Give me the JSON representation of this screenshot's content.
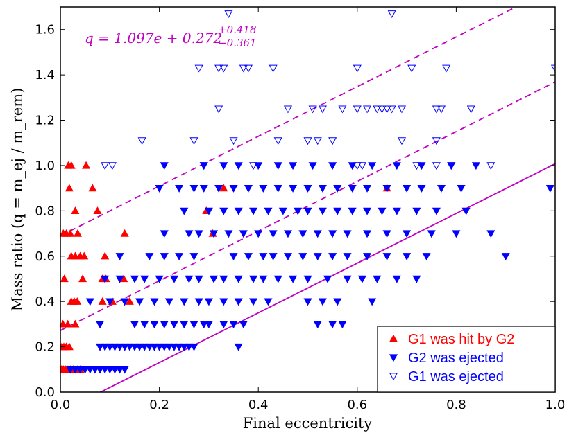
{
  "chart_data": {
    "type": "scatter",
    "xlabel": "Final eccentricity",
    "ylabel": "Mass ratio (q = m_ej / m_rem)",
    "xlim": [
      0.0,
      1.0
    ],
    "ylim": [
      0.0,
      1.7
    ],
    "xticks": [
      "0.0",
      "0.2",
      "0.4",
      "0.6",
      "0.8",
      "1.0"
    ],
    "yticks": [
      "0.0",
      "0.2",
      "0.4",
      "0.6",
      "0.8",
      "1.0",
      "1.2",
      "1.4",
      "1.6"
    ],
    "xtick_values": [
      0.0,
      0.2,
      0.4,
      0.6,
      0.8,
      1.0
    ],
    "ytick_values": [
      0.0,
      0.2,
      0.4,
      0.6,
      0.8,
      1.0,
      1.2,
      1.4,
      1.6
    ],
    "annotation": {
      "main": "q = 1.097e + 0.272",
      "sup": "+0.418",
      "sub": "−0.361"
    },
    "fit": {
      "slope": 1.097,
      "intercept": 0.272,
      "upper_offset": 0.418,
      "lower_offset": 0.361,
      "color": "#c000c0"
    },
    "legend": {
      "placement": "bottom-right",
      "entries": [
        {
          "label": "G1 was hit by G2",
          "color": "#ff0000",
          "marker": "triangle-up-filled"
        },
        {
          "label": "G2 was ejected",
          "color": "#0000ff",
          "marker": "triangle-down-filled"
        },
        {
          "label": "G1 was ejected",
          "color": "#0000ff",
          "marker": "triangle-down-open"
        }
      ]
    },
    "series": [
      {
        "name": "G1 was hit by G2",
        "color": "#ff0000",
        "marker": "triangle-up-filled",
        "points": [
          [
            0.002,
            0.1
          ],
          [
            0.006,
            0.1
          ],
          [
            0.01,
            0.1
          ],
          [
            0.014,
            0.1
          ],
          [
            0.02,
            0.1
          ],
          [
            0.026,
            0.1
          ],
          [
            0.035,
            0.1
          ],
          [
            0.04,
            0.1
          ],
          [
            0.003,
            0.2
          ],
          [
            0.007,
            0.2
          ],
          [
            0.012,
            0.2
          ],
          [
            0.018,
            0.2
          ],
          [
            0.005,
            0.3
          ],
          [
            0.015,
            0.3
          ],
          [
            0.03,
            0.3
          ],
          [
            0.022,
            0.4
          ],
          [
            0.028,
            0.4
          ],
          [
            0.034,
            0.4
          ],
          [
            0.008,
            0.5
          ],
          [
            0.045,
            0.5
          ],
          [
            0.085,
            0.5
          ],
          [
            0.092,
            0.5
          ],
          [
            0.128,
            0.5
          ],
          [
            0.04,
            0.6
          ],
          [
            0.048,
            0.6
          ],
          [
            0.022,
            0.6
          ],
          [
            0.006,
            0.7
          ],
          [
            0.012,
            0.7
          ],
          [
            0.02,
            0.7
          ],
          [
            0.035,
            0.7
          ],
          [
            0.13,
            0.7
          ],
          [
            0.03,
            0.8
          ],
          [
            0.075,
            0.8
          ],
          [
            0.295,
            0.8
          ],
          [
            0.065,
            0.9
          ],
          [
            0.018,
            0.9
          ],
          [
            0.016,
            1.0
          ],
          [
            0.022,
            1.0
          ],
          [
            0.052,
            1.0
          ],
          [
            0.308,
            0.7
          ],
          [
            0.09,
            0.6
          ],
          [
            0.105,
            0.4
          ],
          [
            0.14,
            0.4
          ],
          [
            0.085,
            0.4
          ],
          [
            0.33,
            0.9
          ],
          [
            0.66,
            0.9
          ],
          [
            0.03,
            0.6
          ]
        ]
      },
      {
        "name": "G2 was ejected",
        "color": "#0000ff",
        "marker": "triangle-down-filled",
        "points": [
          [
            0.02,
            0.1
          ],
          [
            0.03,
            0.1
          ],
          [
            0.04,
            0.1
          ],
          [
            0.05,
            0.1
          ],
          [
            0.06,
            0.1
          ],
          [
            0.07,
            0.1
          ],
          [
            0.08,
            0.1
          ],
          [
            0.09,
            0.1
          ],
          [
            0.1,
            0.1
          ],
          [
            0.11,
            0.1
          ],
          [
            0.12,
            0.1
          ],
          [
            0.13,
            0.1
          ],
          [
            0.08,
            0.2
          ],
          [
            0.09,
            0.2
          ],
          [
            0.1,
            0.2
          ],
          [
            0.11,
            0.2
          ],
          [
            0.12,
            0.2
          ],
          [
            0.13,
            0.2
          ],
          [
            0.14,
            0.2
          ],
          [
            0.15,
            0.2
          ],
          [
            0.16,
            0.2
          ],
          [
            0.17,
            0.2
          ],
          [
            0.18,
            0.2
          ],
          [
            0.19,
            0.2
          ],
          [
            0.2,
            0.2
          ],
          [
            0.21,
            0.2
          ],
          [
            0.22,
            0.2
          ],
          [
            0.23,
            0.2
          ],
          [
            0.24,
            0.2
          ],
          [
            0.25,
            0.2
          ],
          [
            0.26,
            0.2
          ],
          [
            0.27,
            0.2
          ],
          [
            0.36,
            0.2
          ],
          [
            0.08,
            0.3
          ],
          [
            0.15,
            0.3
          ],
          [
            0.17,
            0.3
          ],
          [
            0.19,
            0.3
          ],
          [
            0.21,
            0.3
          ],
          [
            0.23,
            0.3
          ],
          [
            0.25,
            0.3
          ],
          [
            0.27,
            0.3
          ],
          [
            0.29,
            0.3
          ],
          [
            0.3,
            0.3
          ],
          [
            0.33,
            0.3
          ],
          [
            0.35,
            0.3
          ],
          [
            0.37,
            0.3
          ],
          [
            0.52,
            0.3
          ],
          [
            0.55,
            0.3
          ],
          [
            0.57,
            0.3
          ],
          [
            0.06,
            0.4
          ],
          [
            0.1,
            0.4
          ],
          [
            0.13,
            0.4
          ],
          [
            0.16,
            0.4
          ],
          [
            0.19,
            0.4
          ],
          [
            0.22,
            0.4
          ],
          [
            0.25,
            0.4
          ],
          [
            0.28,
            0.4
          ],
          [
            0.3,
            0.4
          ],
          [
            0.33,
            0.4
          ],
          [
            0.36,
            0.4
          ],
          [
            0.39,
            0.4
          ],
          [
            0.42,
            0.4
          ],
          [
            0.5,
            0.4
          ],
          [
            0.53,
            0.4
          ],
          [
            0.56,
            0.4
          ],
          [
            0.63,
            0.4
          ],
          [
            0.09,
            0.5
          ],
          [
            0.12,
            0.5
          ],
          [
            0.15,
            0.5
          ],
          [
            0.17,
            0.5
          ],
          [
            0.2,
            0.5
          ],
          [
            0.23,
            0.5
          ],
          [
            0.26,
            0.5
          ],
          [
            0.28,
            0.5
          ],
          [
            0.31,
            0.5
          ],
          [
            0.33,
            0.5
          ],
          [
            0.36,
            0.5
          ],
          [
            0.39,
            0.5
          ],
          [
            0.41,
            0.5
          ],
          [
            0.44,
            0.5
          ],
          [
            0.47,
            0.5
          ],
          [
            0.5,
            0.5
          ],
          [
            0.54,
            0.5
          ],
          [
            0.58,
            0.5
          ],
          [
            0.61,
            0.5
          ],
          [
            0.64,
            0.5
          ],
          [
            0.68,
            0.5
          ],
          [
            0.72,
            0.5
          ],
          [
            0.12,
            0.6
          ],
          [
            0.18,
            0.6
          ],
          [
            0.21,
            0.6
          ],
          [
            0.24,
            0.6
          ],
          [
            0.27,
            0.6
          ],
          [
            0.35,
            0.6
          ],
          [
            0.38,
            0.6
          ],
          [
            0.41,
            0.6
          ],
          [
            0.43,
            0.6
          ],
          [
            0.46,
            0.6
          ],
          [
            0.49,
            0.6
          ],
          [
            0.52,
            0.6
          ],
          [
            0.55,
            0.6
          ],
          [
            0.58,
            0.6
          ],
          [
            0.62,
            0.6
          ],
          [
            0.66,
            0.6
          ],
          [
            0.7,
            0.6
          ],
          [
            0.74,
            0.6
          ],
          [
            0.9,
            0.6
          ],
          [
            0.21,
            0.7
          ],
          [
            0.26,
            0.7
          ],
          [
            0.28,
            0.7
          ],
          [
            0.31,
            0.7
          ],
          [
            0.34,
            0.7
          ],
          [
            0.37,
            0.7
          ],
          [
            0.4,
            0.7
          ],
          [
            0.43,
            0.7
          ],
          [
            0.46,
            0.7
          ],
          [
            0.49,
            0.7
          ],
          [
            0.52,
            0.7
          ],
          [
            0.55,
            0.7
          ],
          [
            0.58,
            0.7
          ],
          [
            0.62,
            0.7
          ],
          [
            0.66,
            0.7
          ],
          [
            0.7,
            0.7
          ],
          [
            0.75,
            0.7
          ],
          [
            0.8,
            0.7
          ],
          [
            0.87,
            0.7
          ],
          [
            0.25,
            0.8
          ],
          [
            0.3,
            0.8
          ],
          [
            0.33,
            0.8
          ],
          [
            0.36,
            0.8
          ],
          [
            0.39,
            0.8
          ],
          [
            0.42,
            0.8
          ],
          [
            0.45,
            0.8
          ],
          [
            0.48,
            0.8
          ],
          [
            0.5,
            0.8
          ],
          [
            0.53,
            0.8
          ],
          [
            0.56,
            0.8
          ],
          [
            0.59,
            0.8
          ],
          [
            0.62,
            0.8
          ],
          [
            0.65,
            0.8
          ],
          [
            0.68,
            0.8
          ],
          [
            0.72,
            0.8
          ],
          [
            0.76,
            0.8
          ],
          [
            0.82,
            0.8
          ],
          [
            0.2,
            0.9
          ],
          [
            0.24,
            0.9
          ],
          [
            0.27,
            0.9
          ],
          [
            0.29,
            0.9
          ],
          [
            0.32,
            0.9
          ],
          [
            0.35,
            0.9
          ],
          [
            0.38,
            0.9
          ],
          [
            0.41,
            0.9
          ],
          [
            0.44,
            0.9
          ],
          [
            0.47,
            0.9
          ],
          [
            0.5,
            0.9
          ],
          [
            0.53,
            0.9
          ],
          [
            0.56,
            0.9
          ],
          [
            0.59,
            0.9
          ],
          [
            0.62,
            0.9
          ],
          [
            0.66,
            0.9
          ],
          [
            0.7,
            0.9
          ],
          [
            0.73,
            0.9
          ],
          [
            0.77,
            0.9
          ],
          [
            0.81,
            0.9
          ],
          [
            0.99,
            0.9
          ],
          [
            0.21,
            1.0
          ],
          [
            0.29,
            1.0
          ],
          [
            0.33,
            1.0
          ],
          [
            0.36,
            1.0
          ],
          [
            0.4,
            1.0
          ],
          [
            0.44,
            1.0
          ],
          [
            0.47,
            1.0
          ],
          [
            0.51,
            1.0
          ],
          [
            0.55,
            1.0
          ],
          [
            0.59,
            1.0
          ],
          [
            0.63,
            1.0
          ],
          [
            0.68,
            1.0
          ],
          [
            0.73,
            1.0
          ],
          [
            0.79,
            1.0
          ],
          [
            0.84,
            1.0
          ]
        ]
      },
      {
        "name": "G1 was ejected",
        "color": "#0000ff",
        "marker": "triangle-down-open",
        "points": [
          [
            0.09,
            1.0
          ],
          [
            0.105,
            1.0
          ],
          [
            0.29,
            1.0
          ],
          [
            0.39,
            1.0
          ],
          [
            0.6,
            1.0
          ],
          [
            0.61,
            1.0
          ],
          [
            0.72,
            1.0
          ],
          [
            0.76,
            1.0
          ],
          [
            0.79,
            1.0
          ],
          [
            0.87,
            1.0
          ],
          [
            0.165,
            1.11
          ],
          [
            0.27,
            1.11
          ],
          [
            0.35,
            1.11
          ],
          [
            0.44,
            1.11
          ],
          [
            0.5,
            1.11
          ],
          [
            0.52,
            1.11
          ],
          [
            0.55,
            1.11
          ],
          [
            0.69,
            1.11
          ],
          [
            0.76,
            1.11
          ],
          [
            0.32,
            1.25
          ],
          [
            0.46,
            1.25
          ],
          [
            0.51,
            1.25
          ],
          [
            0.53,
            1.25
          ],
          [
            0.57,
            1.25
          ],
          [
            0.6,
            1.25
          ],
          [
            0.62,
            1.25
          ],
          [
            0.64,
            1.25
          ],
          [
            0.65,
            1.25
          ],
          [
            0.66,
            1.25
          ],
          [
            0.67,
            1.25
          ],
          [
            0.69,
            1.25
          ],
          [
            0.76,
            1.25
          ],
          [
            0.77,
            1.25
          ],
          [
            0.83,
            1.25
          ],
          [
            0.28,
            1.43
          ],
          [
            0.32,
            1.43
          ],
          [
            0.33,
            1.43
          ],
          [
            0.37,
            1.43
          ],
          [
            0.38,
            1.43
          ],
          [
            0.43,
            1.43
          ],
          [
            0.6,
            1.43
          ],
          [
            0.71,
            1.43
          ],
          [
            0.78,
            1.43
          ],
          [
            1.0,
            1.43
          ],
          [
            0.34,
            1.67
          ],
          [
            0.67,
            1.67
          ]
        ]
      }
    ]
  }
}
